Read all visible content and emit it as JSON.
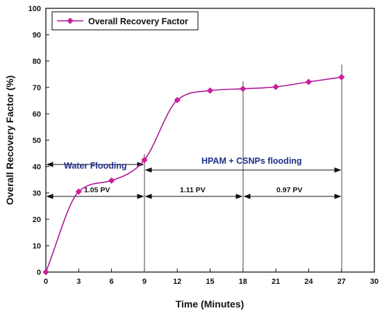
{
  "chart_data": {
    "type": "line",
    "title": "",
    "xlabel": "Time (Minutes)",
    "ylabel": "Overall Recovery Factor (%)",
    "xlim": [
      0,
      30
    ],
    "ylim": [
      0,
      100
    ],
    "x_ticks": [
      0,
      3,
      6,
      9,
      12,
      15,
      18,
      21,
      24,
      27,
      30
    ],
    "y_ticks": [
      0,
      10,
      20,
      30,
      40,
      50,
      60,
      70,
      80,
      90,
      100
    ],
    "grid": false,
    "legend_position": "top-left",
    "series": [
      {
        "name": "Overall Recovery Factor",
        "color": "#b0169a",
        "marker": "diamond",
        "x": [
          0,
          3,
          6,
          9,
          12,
          15,
          18,
          21,
          24,
          27
        ],
        "y": [
          0,
          30.5,
          34.7,
          42.5,
          65.2,
          68.8,
          69.5,
          70.2,
          72.1,
          73.9
        ]
      }
    ],
    "annotations": {
      "water_flooding": "Water Flooding",
      "hpam_flooding": "HPAM + CSNPs flooding",
      "pv_1": "1.05 PV",
      "pv_2": "1.11 PV",
      "pv_3": "0.97 PV"
    }
  }
}
